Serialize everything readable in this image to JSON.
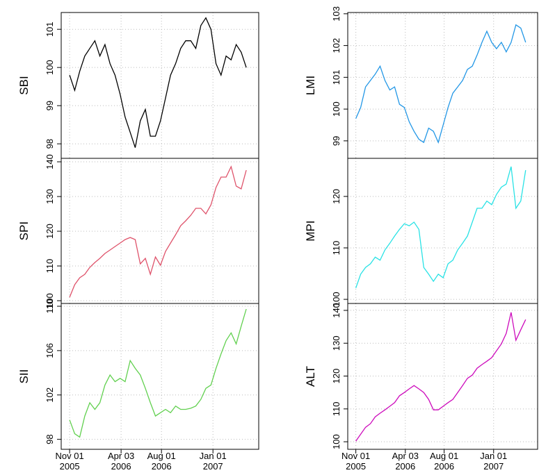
{
  "chart_data": {
    "type": "line",
    "x": [
      "2005-11-01",
      "2005-11-16",
      "2005-12-01",
      "2005-12-16",
      "2005-12-31",
      "2006-01-15",
      "2006-01-30",
      "2006-02-14",
      "2006-03-01",
      "2006-03-16",
      "2006-03-31",
      "2006-04-15",
      "2006-04-30",
      "2006-05-15",
      "2006-05-30",
      "2006-06-14",
      "2006-06-29",
      "2006-07-14",
      "2006-07-29",
      "2006-08-13",
      "2006-08-28",
      "2006-09-12",
      "2006-09-27",
      "2006-10-12",
      "2006-10-27",
      "2006-11-11",
      "2006-11-26",
      "2006-12-11",
      "2006-12-26",
      "2007-01-10",
      "2007-01-25",
      "2007-02-09",
      "2007-02-24",
      "2007-03-11",
      "2007-03-26",
      "2007-04-10"
    ],
    "xlim": [
      "2005-10-07",
      "2007-05-17"
    ],
    "xticks": [
      {
        "value": "2005-11-01",
        "label": "Nov 01\n2005"
      },
      {
        "value": "2006-04-03",
        "label": "Apr 03\n2006"
      },
      {
        "value": "2006-08-01",
        "label": "Aug 01\n2006"
      },
      {
        "value": "2007-01-01",
        "label": "Jan 01\n2007"
      }
    ],
    "grid": true,
    "series": [
      {
        "name": "SBI",
        "color": "#000000",
        "ylim": [
          97.62,
          101.44
        ],
        "yticks": [
          98,
          99,
          100,
          101
        ],
        "values": [
          99.8,
          99.4,
          99.9,
          100.3,
          100.5,
          100.7,
          100.3,
          100.6,
          100.1,
          99.8,
          99.3,
          98.7,
          98.3,
          97.9,
          98.6,
          98.9,
          98.2,
          98.2,
          98.6,
          99.2,
          99.8,
          100.1,
          100.5,
          100.7,
          100.7,
          100.5,
          101.1,
          101.3,
          101.0,
          100.1,
          99.8,
          100.3,
          100.2,
          100.6,
          100.4,
          100.0
        ]
      },
      {
        "name": "SPI",
        "color": "#DF536B",
        "ylim": [
          99.2,
          141
        ],
        "yticks": [
          100,
          110,
          120,
          130,
          140
        ],
        "values": [
          101,
          104.6,
          106.6,
          107.6,
          109.6,
          111,
          112.2,
          113.6,
          114.6,
          115.6,
          116.6,
          117.6,
          118.2,
          117.6,
          110.6,
          112.2,
          107.6,
          112.6,
          110.2,
          114.2,
          116.6,
          119,
          121.6,
          123,
          124.6,
          126.6,
          126.6,
          125,
          127.6,
          132.6,
          135.6,
          135.6,
          138.6,
          133,
          132.2,
          137.6
        ]
      },
      {
        "name": "SII",
        "color": "#61D04F",
        "ylim": [
          97.1,
          110.25
        ],
        "yticks": [
          98,
          102,
          106,
          110
        ],
        "values": [
          99.75,
          98.5,
          98.2,
          100.1,
          101.3,
          100.7,
          101.3,
          102.9,
          103.8,
          103.2,
          103.5,
          103.2,
          105.1,
          104.4,
          103.8,
          102.6,
          101.3,
          100.1,
          100.4,
          100.7,
          100.4,
          101,
          100.7,
          100.7,
          100.8,
          101,
          101.6,
          102.6,
          102.9,
          104.4,
          105.7,
          106.9,
          107.6,
          106.6,
          108.2,
          109.75
        ]
      },
      {
        "name": "LMI",
        "color": "#2297E6",
        "ylim": [
          98.45,
          103.04
        ],
        "yticks": [
          99,
          100,
          101,
          102,
          103
        ],
        "values": [
          99.7,
          100.05,
          100.7,
          100.9,
          101.1,
          101.35,
          100.9,
          100.6,
          100.7,
          100.15,
          100.05,
          99.6,
          99.3,
          99.05,
          98.95,
          99.4,
          99.3,
          98.95,
          99.5,
          100.05,
          100.5,
          100.7,
          100.9,
          101.25,
          101.35,
          101.7,
          102.1,
          102.45,
          102.1,
          101.9,
          102.1,
          101.8,
          102.1,
          102.65,
          102.55,
          102.1
        ]
      },
      {
        "name": "MPI",
        "color": "#28E2E5",
        "ylim": [
          99.2,
          127.4
        ],
        "yticks": [
          100,
          110,
          120
        ],
        "values": [
          102.2,
          104.9,
          106.2,
          106.9,
          108.2,
          107.6,
          109.6,
          110.9,
          112.3,
          113.6,
          114.7,
          114.3,
          115,
          113.6,
          106.2,
          104.9,
          103.5,
          104.9,
          104.2,
          106.9,
          107.6,
          109.6,
          110.9,
          112.3,
          115,
          117.7,
          117.7,
          119.1,
          118.4,
          120.4,
          121.8,
          122.4,
          125.8,
          117.7,
          119.1,
          125.1
        ]
      },
      {
        "name": "ALT",
        "color": "#CD0BBC",
        "ylim": [
          97.7,
          142.1
        ],
        "yticks": [
          100,
          110,
          120,
          130,
          140
        ],
        "values": [
          100.2,
          102.3,
          104.4,
          105.5,
          107.6,
          108.7,
          109.7,
          110.8,
          111.9,
          114,
          115,
          116.1,
          117.1,
          116.1,
          115,
          112.9,
          109.7,
          109.7,
          110.8,
          111.9,
          112.9,
          115,
          117.1,
          119.3,
          120.3,
          122.4,
          123.5,
          124.5,
          125.6,
          127.7,
          129.8,
          133,
          139.4,
          130.9,
          134.1,
          137.2
        ]
      }
    ]
  }
}
